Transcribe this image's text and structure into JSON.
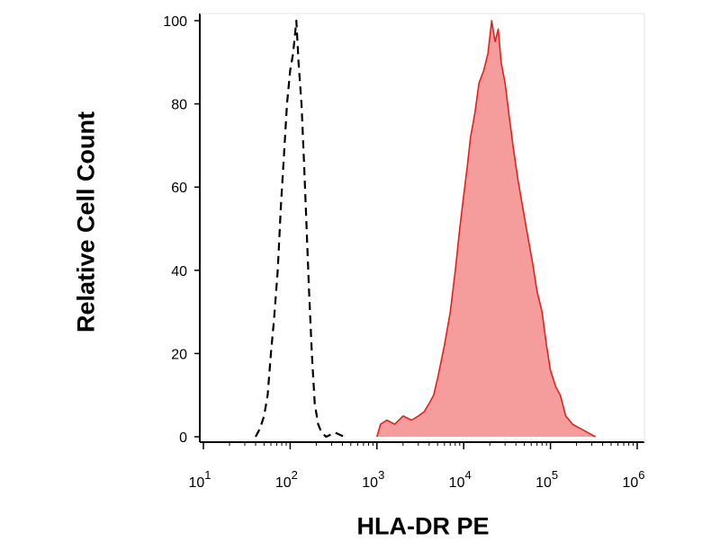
{
  "chart_data": {
    "type": "area",
    "xlabel": "HLA-DR PE",
    "ylabel": "Relative Cell Count",
    "x_scale": "log",
    "xlim": [
      10,
      1000000
    ],
    "ylim": [
      0,
      100
    ],
    "x_ticks": [
      {
        "value": 10,
        "base": "10",
        "exp": "1"
      },
      {
        "value": 100,
        "base": "10",
        "exp": "2"
      },
      {
        "value": 1000,
        "base": "10",
        "exp": "3"
      },
      {
        "value": 10000,
        "base": "10",
        "exp": "4"
      },
      {
        "value": 100000,
        "base": "10",
        "exp": "5"
      },
      {
        "value": 1000000,
        "base": "10",
        "exp": "6"
      }
    ],
    "y_ticks": [
      "0",
      "20",
      "40",
      "60",
      "80",
      "100"
    ],
    "grid": false,
    "legend": "none",
    "series": [
      {
        "style": "dashed-line",
        "color": "#000000",
        "points": [
          [
            40,
            0
          ],
          [
            45,
            2
          ],
          [
            50,
            5
          ],
          [
            55,
            10
          ],
          [
            60,
            20
          ],
          [
            65,
            28
          ],
          [
            72,
            40
          ],
          [
            78,
            55
          ],
          [
            85,
            68
          ],
          [
            92,
            80
          ],
          [
            100,
            88
          ],
          [
            108,
            92
          ],
          [
            113,
            96
          ],
          [
            118,
            100
          ],
          [
            125,
            90
          ],
          [
            135,
            80
          ],
          [
            145,
            65
          ],
          [
            155,
            50
          ],
          [
            165,
            35
          ],
          [
            178,
            20
          ],
          [
            192,
            8
          ],
          [
            210,
            3
          ],
          [
            230,
            1
          ],
          [
            260,
            0
          ],
          [
            330,
            1
          ],
          [
            420,
            0
          ]
        ]
      },
      {
        "style": "filled",
        "color": "#e8201c",
        "fill": "#f59c9c",
        "points": [
          [
            1000,
            0
          ],
          [
            1100,
            3
          ],
          [
            1300,
            4
          ],
          [
            1600,
            3
          ],
          [
            2000,
            5
          ],
          [
            2500,
            4
          ],
          [
            3000,
            5
          ],
          [
            3500,
            6
          ],
          [
            4000,
            8
          ],
          [
            4500,
            10
          ],
          [
            5000,
            14
          ],
          [
            6000,
            22
          ],
          [
            7000,
            30
          ],
          [
            8000,
            40
          ],
          [
            9000,
            50
          ],
          [
            10000,
            58
          ],
          [
            11000,
            65
          ],
          [
            12000,
            72
          ],
          [
            13500,
            78
          ],
          [
            15000,
            85
          ],
          [
            17000,
            88
          ],
          [
            19000,
            92
          ],
          [
            21000,
            100
          ],
          [
            23000,
            95
          ],
          [
            25000,
            98
          ],
          [
            27000,
            90
          ],
          [
            30000,
            85
          ],
          [
            33000,
            78
          ],
          [
            37000,
            70
          ],
          [
            42000,
            62
          ],
          [
            48000,
            55
          ],
          [
            55000,
            48
          ],
          [
            62000,
            42
          ],
          [
            70000,
            35
          ],
          [
            80000,
            30
          ],
          [
            90000,
            22
          ],
          [
            100000,
            16
          ],
          [
            115000,
            12
          ],
          [
            130000,
            10
          ],
          [
            150000,
            5
          ],
          [
            180000,
            3
          ],
          [
            220000,
            2
          ],
          [
            270000,
            1
          ],
          [
            330000,
            0
          ]
        ]
      }
    ]
  }
}
